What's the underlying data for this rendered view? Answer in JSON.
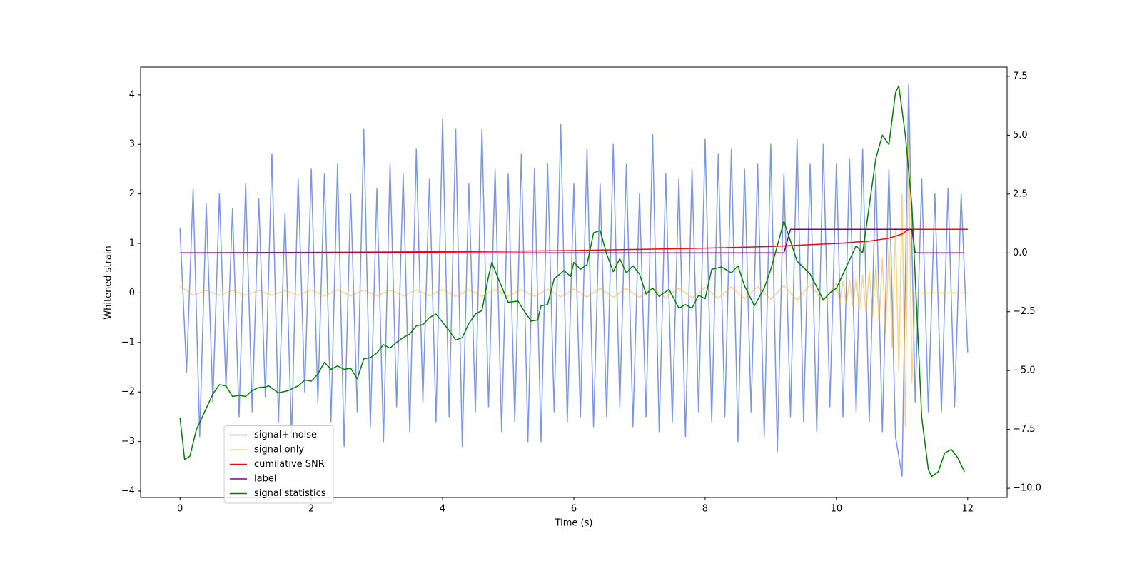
{
  "chart_data": {
    "type": "line",
    "xlabel": "Time (s)",
    "ylabel": "Whitened strain",
    "xlim": [
      -0.6,
      12.6
    ],
    "xticks": [
      0,
      2,
      4,
      6,
      8,
      10,
      12
    ],
    "ylim": [
      -4.13,
      4.56
    ],
    "yticks": [
      {
        "value": -4,
        "label": "−4"
      },
      {
        "value": -3,
        "label": "−3"
      },
      {
        "value": -2,
        "label": "−2"
      },
      {
        "value": -1,
        "label": "−1"
      },
      0,
      1,
      2,
      3,
      4
    ],
    "y2lim": [
      -10.39,
      7.89
    ],
    "y2ticks": [
      {
        "value": -10,
        "label": "−10.0"
      },
      {
        "value": -7.5,
        "label": "−7.5"
      },
      {
        "value": -5,
        "label": "−5.0"
      },
      {
        "value": -2.5,
        "label": "−2.5"
      },
      {
        "value": 0,
        "label": "0.0"
      },
      {
        "value": 2.5,
        "label": "2.5"
      },
      {
        "value": 5,
        "label": "5.0"
      },
      {
        "value": 7.5,
        "label": "7.5"
      }
    ],
    "legend": "lower left",
    "series": [
      {
        "name": "signal+ noise",
        "color": "#4169e1",
        "alpha": 0.7,
        "x": [
          0,
          0.1,
          0.2,
          0.3,
          0.4,
          0.5,
          0.6,
          0.7,
          0.8,
          0.9,
          1,
          1.1,
          1.2,
          1.3,
          1.4,
          1.5,
          1.6,
          1.7,
          1.8,
          1.9,
          2,
          2.1,
          2.2,
          2.3,
          2.4,
          2.5,
          2.6,
          2.7,
          2.8,
          2.9,
          3,
          3.1,
          3.2,
          3.3,
          3.4,
          3.5,
          3.6,
          3.7,
          3.8,
          3.9,
          4,
          4.1,
          4.2,
          4.3,
          4.4,
          4.5,
          4.6,
          4.7,
          4.8,
          4.9,
          5,
          5.1,
          5.2,
          5.3,
          5.4,
          5.5,
          5.6,
          5.7,
          5.8,
          5.9,
          6,
          6.1,
          6.2,
          6.3,
          6.4,
          6.5,
          6.6,
          6.7,
          6.8,
          6.9,
          7,
          7.1,
          7.2,
          7.3,
          7.4,
          7.5,
          7.6,
          7.7,
          7.8,
          7.9,
          8,
          8.1,
          8.2,
          8.3,
          8.4,
          8.5,
          8.6,
          8.7,
          8.8,
          8.9,
          9,
          9.1,
          9.2,
          9.3,
          9.4,
          9.5,
          9.6,
          9.7,
          9.8,
          9.9,
          10,
          10.1,
          10.2,
          10.3,
          10.4,
          10.5,
          10.6,
          10.7,
          10.8,
          10.9,
          11,
          11.1,
          11.2,
          11.3,
          11.4,
          11.5,
          11.6,
          11.7,
          11.8,
          11.9,
          12
        ],
        "values": [
          1.3,
          -1.6,
          2.1,
          -2.9,
          1.8,
          -2.2,
          2.0,
          -1.9,
          1.7,
          -2.5,
          2.2,
          -2.4,
          1.9,
          -2.1,
          2.8,
          -2.6,
          1.6,
          -2.9,
          2.3,
          -2.0,
          2.5,
          -2.2,
          2.4,
          -2.6,
          2.6,
          -3.1,
          2.0,
          -2.4,
          3.3,
          -2.7,
          2.1,
          -3.0,
          2.6,
          -2.3,
          2.4,
          -2.8,
          2.9,
          -2.2,
          2.3,
          -2.6,
          3.5,
          -2.5,
          3.3,
          -3.1,
          2.2,
          -2.4,
          3.3,
          -2.3,
          2.5,
          -2.8,
          2.4,
          -2.6,
          2.8,
          -3.0,
          2.5,
          -3.0,
          2.6,
          -2.4,
          3.4,
          -2.6,
          2.2,
          -2.5,
          2.9,
          -2.7,
          2.2,
          -2.5,
          3.0,
          -2.3,
          2.6,
          -2.7,
          2.0,
          -2.5,
          3.2,
          -2.8,
          2.4,
          -2.6,
          2.3,
          -2.9,
          2.5,
          -2.4,
          3.1,
          -2.6,
          2.8,
          -2.5,
          2.9,
          -3.0,
          2.5,
          -2.4,
          2.6,
          -2.9,
          3.0,
          -3.2,
          2.4,
          -2.5,
          3.1,
          -2.6,
          2.6,
          -2.8,
          3.0,
          -2.3,
          2.6,
          -2.5,
          2.7,
          -2.4,
          2.9,
          -2.6,
          2.4,
          -2.8,
          2.5,
          -2.9,
          -3.7,
          4.2,
          -2.2,
          2.3,
          -2.4,
          2.0,
          -2.4,
          2.1,
          -2.3,
          2.0,
          -1.2
        ]
      },
      {
        "name": "signal only",
        "color": "#ffa500",
        "alpha": 0.5,
        "x": [
          0,
          0.2,
          0.4,
          0.6,
          0.8,
          1,
          1.2,
          1.4,
          1.6,
          1.8,
          2,
          2.2,
          2.4,
          2.6,
          2.8,
          3,
          3.2,
          3.4,
          3.6,
          3.8,
          4,
          4.2,
          4.4,
          4.6,
          4.8,
          5,
          5.2,
          5.4,
          5.6,
          5.8,
          6,
          6.2,
          6.4,
          6.6,
          6.8,
          7,
          7.2,
          7.4,
          7.6,
          7.8,
          8,
          8.2,
          8.4,
          8.6,
          8.8,
          9,
          9.2,
          9.4,
          9.6,
          9.8,
          10,
          10.05,
          10.1,
          10.15,
          10.2,
          10.25,
          10.3,
          10.35,
          10.4,
          10.45,
          10.5,
          10.55,
          10.6,
          10.65,
          10.7,
          10.75,
          10.8,
          10.85,
          10.9,
          10.95,
          11,
          11.05,
          11.1,
          11.15,
          11.2,
          12
        ],
        "values": [
          0.15,
          -0.05,
          0.05,
          -0.05,
          0.05,
          -0.05,
          0.05,
          -0.05,
          0.05,
          -0.05,
          0.06,
          -0.06,
          0.06,
          -0.06,
          0.06,
          -0.06,
          0.06,
          -0.06,
          0.06,
          -0.06,
          0.07,
          -0.07,
          0.07,
          -0.07,
          0.07,
          -0.07,
          0.07,
          -0.07,
          0.08,
          -0.08,
          0.08,
          -0.08,
          0.09,
          -0.09,
          0.09,
          -0.09,
          0.1,
          -0.1,
          0.1,
          -0.1,
          0.11,
          -0.11,
          0.12,
          -0.12,
          0.13,
          -0.13,
          0.15,
          -0.15,
          0.17,
          -0.17,
          0.2,
          -0.21,
          0.23,
          -0.24,
          0.26,
          -0.28,
          0.3,
          -0.33,
          0.36,
          -0.4,
          0.45,
          -0.5,
          0.56,
          -0.63,
          0.7,
          -0.8,
          0.95,
          -1.1,
          1.3,
          -1.6,
          2.0,
          -2.7,
          3.2,
          -1.8,
          0,
          0
        ]
      },
      {
        "name": "cumilative SNR",
        "color": "#ff0000",
        "alpha": 1,
        "axis": "y2",
        "x": [
          0,
          2,
          4,
          6,
          8,
          9,
          10,
          10.5,
          10.8,
          11,
          11.1,
          11.15,
          12
        ],
        "values": [
          0,
          0.02,
          0.05,
          0.1,
          0.2,
          0.27,
          0.4,
          0.5,
          0.62,
          0.8,
          1.0,
          1.0,
          1.0
        ]
      },
      {
        "name": "label",
        "color": "#800080",
        "alpha": 1,
        "axis": "y2",
        "x": [
          0,
          9.2,
          9.3,
          11.15,
          11.2,
          11.95
        ],
        "values": [
          0,
          0,
          1,
          1,
          0,
          0
        ]
      },
      {
        "name": "signal statistics",
        "color": "#008000",
        "alpha": 1,
        "axis": "y2",
        "x": [
          0,
          0.07,
          0.15,
          0.25,
          0.35,
          0.5,
          0.6,
          0.7,
          0.8,
          0.9,
          1.0,
          1.1,
          1.2,
          1.3,
          1.35,
          1.5,
          1.65,
          1.8,
          1.9,
          2.0,
          2.1,
          2.2,
          2.3,
          2.4,
          2.5,
          2.6,
          2.7,
          2.8,
          2.9,
          3.0,
          3.1,
          3.2,
          3.3,
          3.4,
          3.5,
          3.6,
          3.7,
          3.8,
          3.9,
          4.0,
          4.1,
          4.2,
          4.3,
          4.4,
          4.5,
          4.6,
          4.7,
          4.75,
          4.85,
          5.0,
          5.15,
          5.25,
          5.35,
          5.45,
          5.5,
          5.6,
          5.7,
          5.85,
          5.95,
          6.0,
          6.1,
          6.2,
          6.3,
          6.4,
          6.5,
          6.6,
          6.7,
          6.8,
          6.9,
          7.0,
          7.1,
          7.2,
          7.3,
          7.45,
          7.6,
          7.7,
          7.8,
          7.9,
          8.0,
          8.1,
          8.25,
          8.4,
          8.5,
          8.6,
          8.75,
          8.9,
          9.0,
          9.1,
          9.2,
          9.3,
          9.4,
          9.6,
          9.8,
          9.9,
          10.0,
          10.1,
          10.2,
          10.3,
          10.4,
          10.5,
          10.6,
          10.7,
          10.8,
          10.9,
          10.95,
          11.05,
          11.15,
          11.3,
          11.4,
          11.45,
          11.55,
          11.65,
          11.75,
          11.85,
          11.95
        ],
        "values": [
          -7.0,
          -8.77,
          -8.64,
          -7.5,
          -6.9,
          -6.0,
          -5.6,
          -5.65,
          -6.1,
          -6.05,
          -6.1,
          -5.85,
          -5.72,
          -5.7,
          -5.65,
          -5.95,
          -5.85,
          -5.65,
          -5.4,
          -5.45,
          -5.15,
          -4.65,
          -4.95,
          -4.8,
          -4.95,
          -4.9,
          -5.35,
          -4.5,
          -4.45,
          -4.25,
          -3.9,
          -4.05,
          -3.8,
          -3.6,
          -3.45,
          -3.1,
          -3.05,
          -2.75,
          -2.6,
          -2.95,
          -3.3,
          -3.7,
          -3.6,
          -3.0,
          -2.6,
          -2.45,
          -1.0,
          -0.4,
          -1.1,
          -2.1,
          -2.05,
          -2.5,
          -2.9,
          -2.85,
          -2.25,
          -2.2,
          -1.1,
          -0.75,
          -1.0,
          -0.4,
          -0.7,
          -0.5,
          0.85,
          0.95,
          -0.05,
          -0.8,
          -0.25,
          -0.85,
          -0.55,
          -0.9,
          -1.75,
          -1.5,
          -1.85,
          -1.55,
          -2.35,
          -2.2,
          -2.35,
          -1.8,
          -1.95,
          -0.7,
          -0.6,
          -0.85,
          -0.55,
          -1.4,
          -2.25,
          -1.5,
          -0.7,
          0.3,
          1.35,
          0.5,
          -0.35,
          -0.9,
          -2.0,
          -1.7,
          -1.5,
          -0.9,
          -0.3,
          0.3,
          0.0,
          2.0,
          4.0,
          5.0,
          4.6,
          6.8,
          7.1,
          5.0,
          2.0,
          -7.0,
          -9.2,
          -9.5,
          -9.3,
          -8.5,
          -8.35,
          -8.7,
          -9.3
        ]
      }
    ]
  }
}
